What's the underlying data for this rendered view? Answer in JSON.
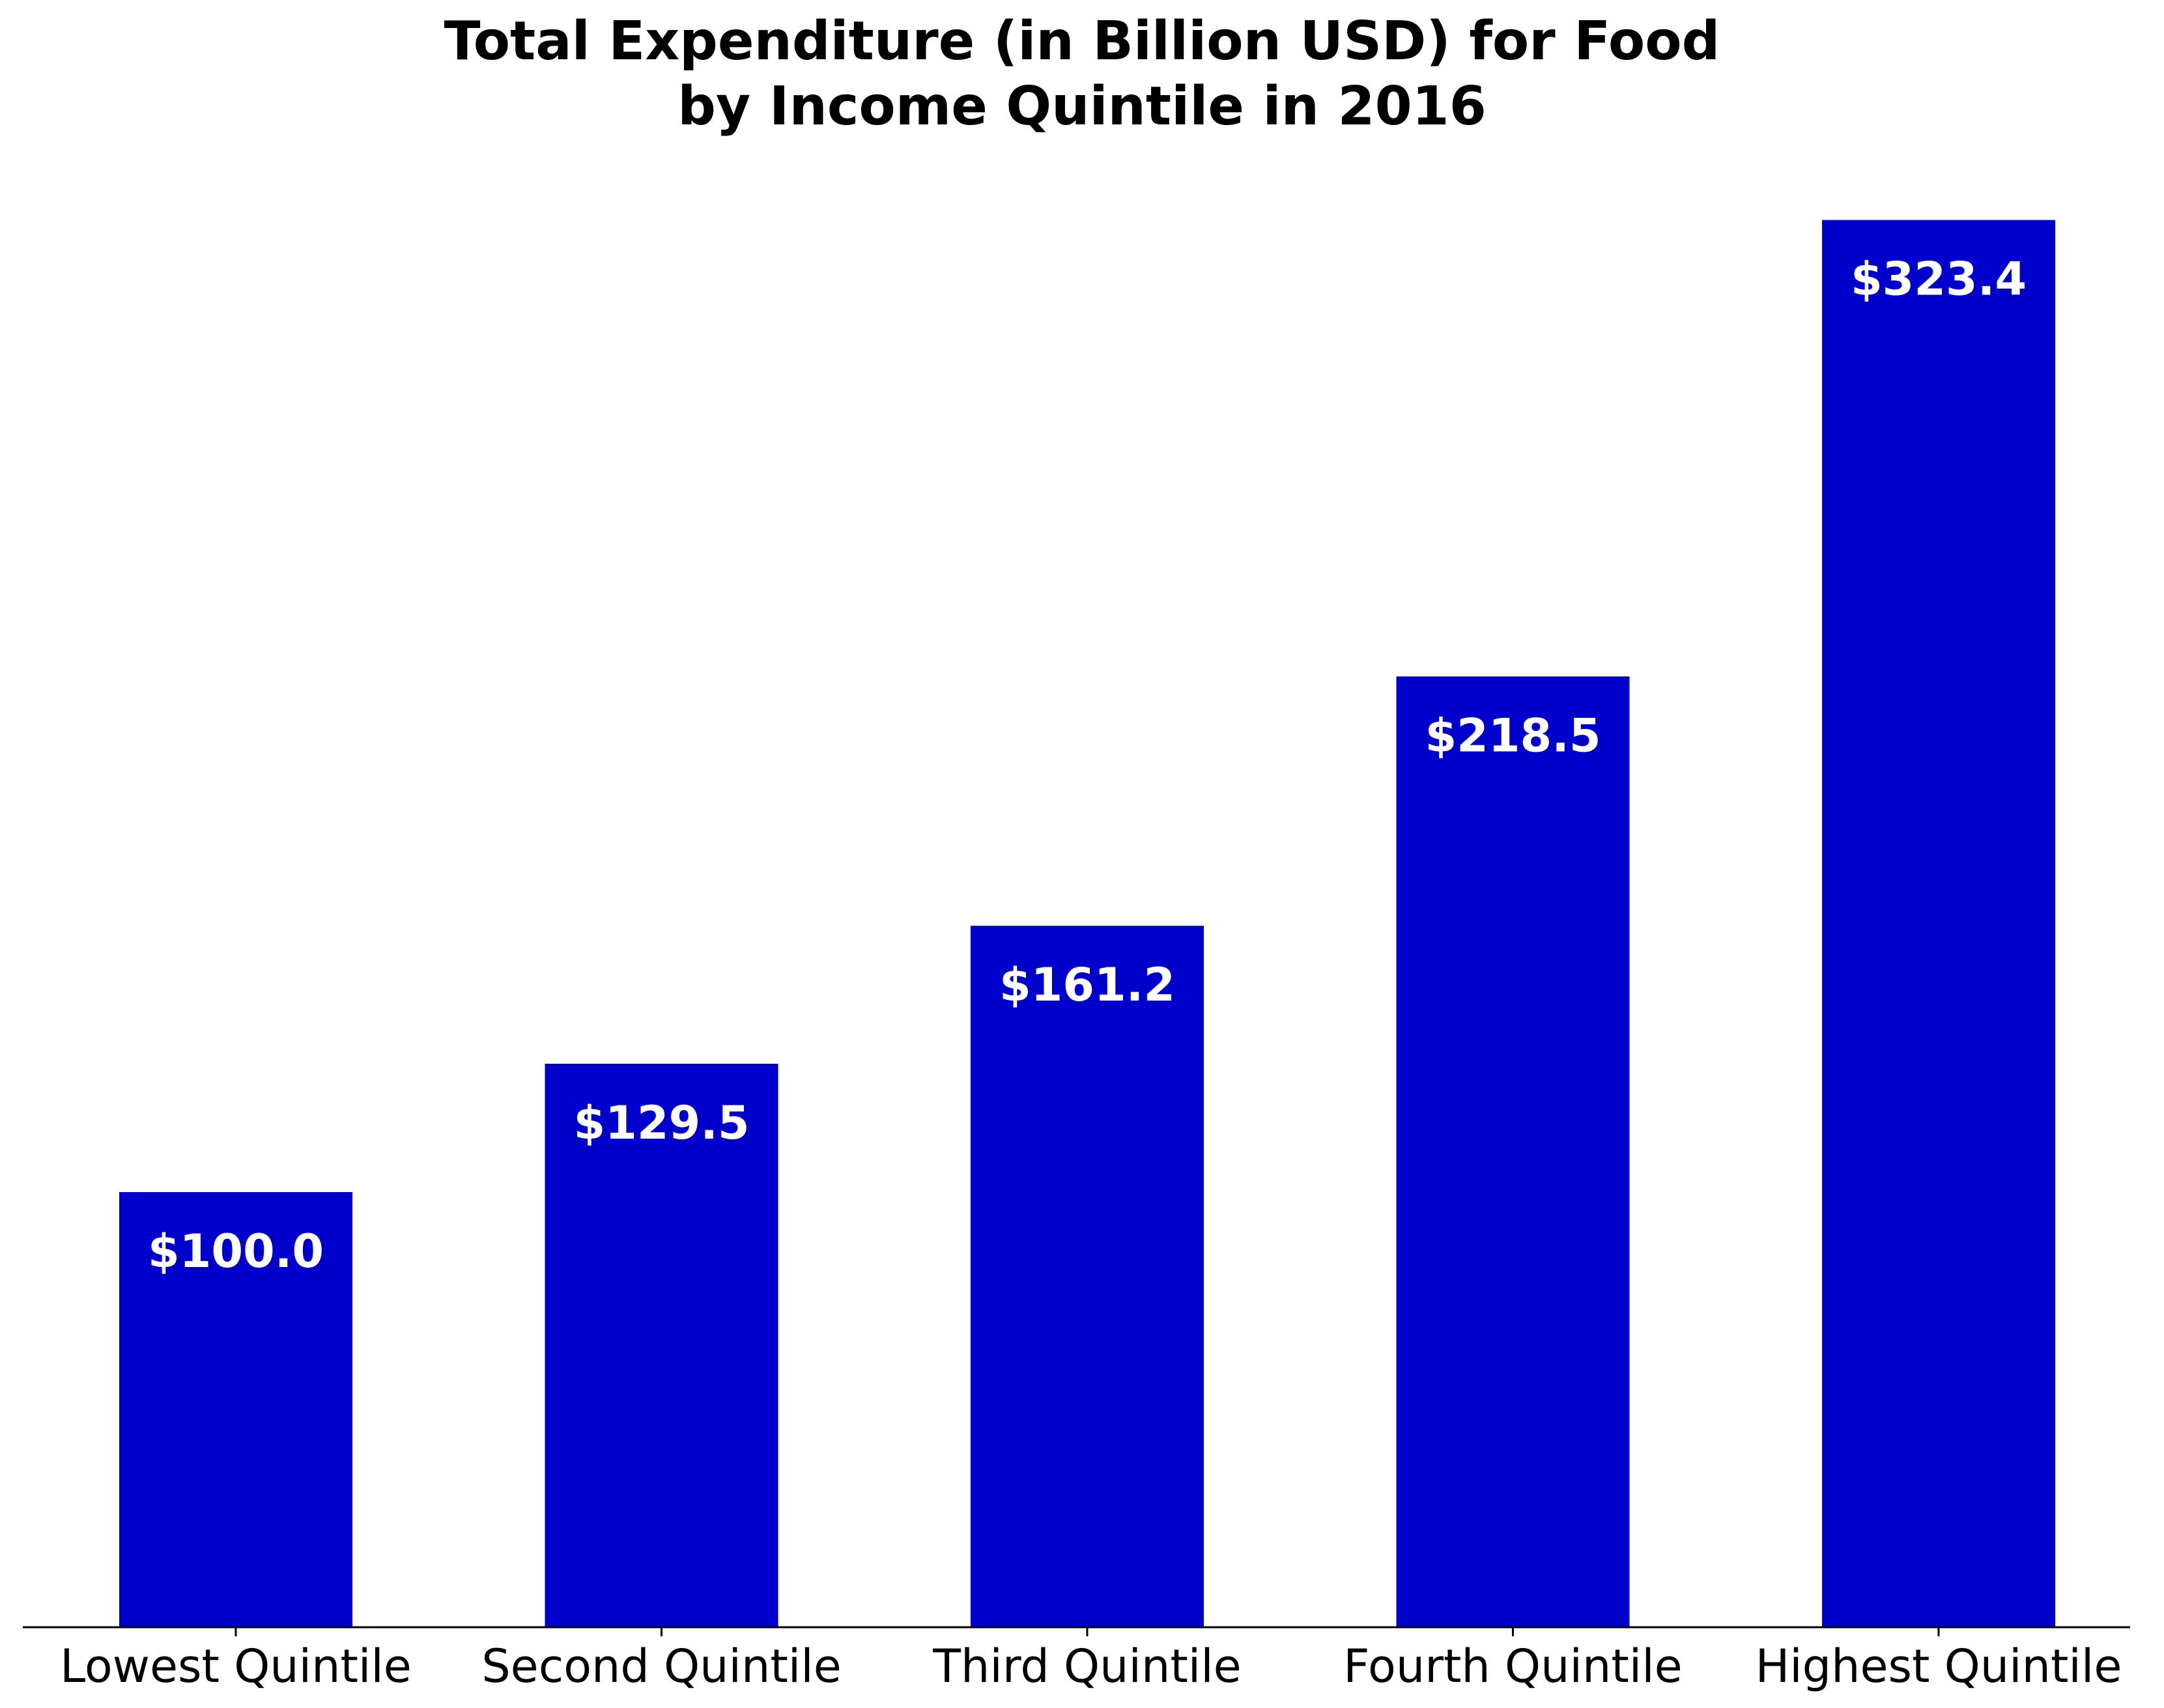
{
  "chart_data": {
    "type": "bar",
    "title": "Total Expenditure (in Billion USD) for Food\nby Income Quintile in 2016",
    "title_lines": [
      "Total Expenditure (in Billion USD) for Food",
      "by Income Quintile in 2016"
    ],
    "xlabel": "",
    "ylabel": "",
    "categories": [
      "Lowest Quintile",
      "Second Quintile",
      "Third Quintile",
      "Fourth Quintile",
      "Highest Quintile"
    ],
    "values": [
      100.0,
      129.5,
      161.2,
      218.5,
      323.4
    ],
    "value_labels": [
      "$100.0",
      "$129.5",
      "$161.2",
      "$218.5",
      "$323.4"
    ],
    "ylim": [
      0,
      340
    ],
    "grid": false,
    "legend": "none",
    "bar_color": "#0000cd",
    "label_color": "#ffffff"
  }
}
